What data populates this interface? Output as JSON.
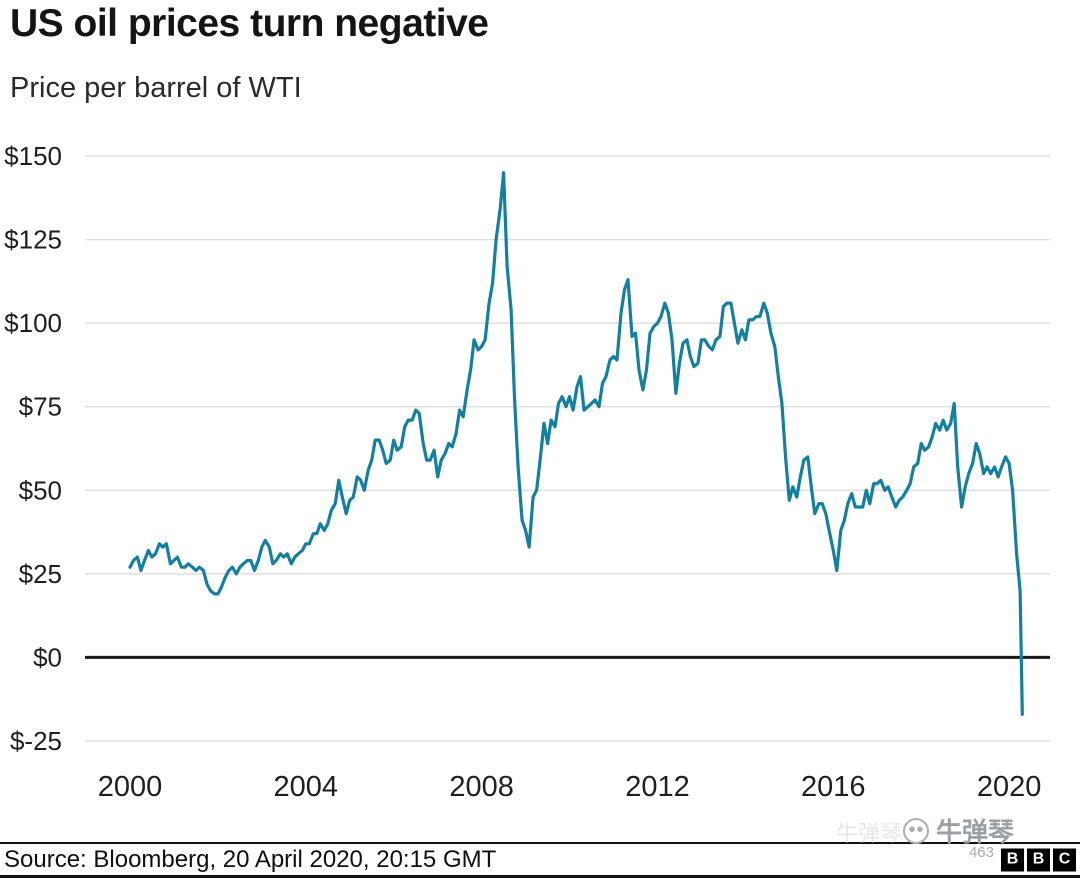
{
  "chart_data": {
    "type": "line",
    "title": "US oil prices turn negative",
    "subtitle": "Price per barrel of WTI",
    "series_name": "WTI crude oil price, US dollars per barrel",
    "line_color": "#1380A1",
    "grid": "horizontal",
    "legend": "none",
    "xlim": [
      1999.0,
      2020.93
    ],
    "ylim": [
      -25,
      150
    ],
    "zero_line_value": 0,
    "yticks": [
      {
        "value": 150,
        "label": "$150"
      },
      {
        "value": 125,
        "label": "$125"
      },
      {
        "value": 100,
        "label": "$100"
      },
      {
        "value": 75,
        "label": "$75"
      },
      {
        "value": 50,
        "label": "$50"
      },
      {
        "value": 25,
        "label": "$25"
      },
      {
        "value": 0,
        "label": "$0"
      },
      {
        "value": -25,
        "label": "$-25"
      }
    ],
    "xticks": [
      {
        "value": 2000,
        "label": "2000"
      },
      {
        "value": 2004,
        "label": "2004"
      },
      {
        "value": 2008,
        "label": "2008"
      },
      {
        "value": 2012,
        "label": "2012"
      },
      {
        "value": 2016,
        "label": "2016"
      },
      {
        "value": 2020,
        "label": "2020"
      }
    ],
    "points": [
      [
        2000.0,
        27
      ],
      [
        2000.08,
        29
      ],
      [
        2000.17,
        30
      ],
      [
        2000.25,
        26
      ],
      [
        2000.33,
        29
      ],
      [
        2000.42,
        32
      ],
      [
        2000.5,
        30
      ],
      [
        2000.58,
        31
      ],
      [
        2000.67,
        34
      ],
      [
        2000.75,
        33
      ],
      [
        2000.83,
        34
      ],
      [
        2000.92,
        28
      ],
      [
        2001.0,
        29
      ],
      [
        2001.08,
        30
      ],
      [
        2001.17,
        27
      ],
      [
        2001.25,
        27
      ],
      [
        2001.33,
        28
      ],
      [
        2001.42,
        27
      ],
      [
        2001.5,
        26
      ],
      [
        2001.58,
        27
      ],
      [
        2001.67,
        26
      ],
      [
        2001.75,
        22
      ],
      [
        2001.83,
        20
      ],
      [
        2001.92,
        19
      ],
      [
        2002.0,
        19
      ],
      [
        2002.08,
        21
      ],
      [
        2002.17,
        24
      ],
      [
        2002.25,
        26
      ],
      [
        2002.33,
        27
      ],
      [
        2002.42,
        25
      ],
      [
        2002.5,
        27
      ],
      [
        2002.58,
        28
      ],
      [
        2002.67,
        29
      ],
      [
        2002.75,
        29
      ],
      [
        2002.83,
        26
      ],
      [
        2002.92,
        29
      ],
      [
        2003.0,
        33
      ],
      [
        2003.08,
        35
      ],
      [
        2003.17,
        33
      ],
      [
        2003.25,
        28
      ],
      [
        2003.33,
        29
      ],
      [
        2003.42,
        31
      ],
      [
        2003.5,
        30
      ],
      [
        2003.58,
        31
      ],
      [
        2003.67,
        28
      ],
      [
        2003.75,
        30
      ],
      [
        2003.83,
        31
      ],
      [
        2003.92,
        32
      ],
      [
        2004.0,
        34
      ],
      [
        2004.08,
        34
      ],
      [
        2004.17,
        37
      ],
      [
        2004.25,
        37
      ],
      [
        2004.33,
        40
      ],
      [
        2004.42,
        38
      ],
      [
        2004.5,
        40
      ],
      [
        2004.58,
        44
      ],
      [
        2004.67,
        46
      ],
      [
        2004.75,
        53
      ],
      [
        2004.83,
        48
      ],
      [
        2004.92,
        43
      ],
      [
        2005.0,
        47
      ],
      [
        2005.08,
        48
      ],
      [
        2005.17,
        54
      ],
      [
        2005.25,
        53
      ],
      [
        2005.33,
        50
      ],
      [
        2005.42,
        56
      ],
      [
        2005.5,
        59
      ],
      [
        2005.58,
        65
      ],
      [
        2005.67,
        65
      ],
      [
        2005.75,
        62
      ],
      [
        2005.83,
        58
      ],
      [
        2005.92,
        59
      ],
      [
        2006.0,
        65
      ],
      [
        2006.08,
        62
      ],
      [
        2006.17,
        63
      ],
      [
        2006.25,
        69
      ],
      [
        2006.33,
        71
      ],
      [
        2006.42,
        71
      ],
      [
        2006.5,
        74
      ],
      [
        2006.58,
        73
      ],
      [
        2006.67,
        64
      ],
      [
        2006.75,
        59
      ],
      [
        2006.83,
        59
      ],
      [
        2006.92,
        62
      ],
      [
        2007.0,
        54
      ],
      [
        2007.08,
        59
      ],
      [
        2007.17,
        61
      ],
      [
        2007.25,
        64
      ],
      [
        2007.33,
        63
      ],
      [
        2007.42,
        67
      ],
      [
        2007.5,
        74
      ],
      [
        2007.58,
        72
      ],
      [
        2007.67,
        80
      ],
      [
        2007.75,
        86
      ],
      [
        2007.83,
        95
      ],
      [
        2007.92,
        92
      ],
      [
        2008.0,
        93
      ],
      [
        2008.08,
        95
      ],
      [
        2008.17,
        106
      ],
      [
        2008.25,
        112
      ],
      [
        2008.33,
        125
      ],
      [
        2008.42,
        134
      ],
      [
        2008.5,
        145
      ],
      [
        2008.58,
        117
      ],
      [
        2008.67,
        104
      ],
      [
        2008.75,
        77
      ],
      [
        2008.83,
        57
      ],
      [
        2008.92,
        41
      ],
      [
        2009.0,
        38
      ],
      [
        2009.08,
        33
      ],
      [
        2009.17,
        48
      ],
      [
        2009.25,
        50
      ],
      [
        2009.33,
        59
      ],
      [
        2009.42,
        70
      ],
      [
        2009.5,
        64
      ],
      [
        2009.58,
        71
      ],
      [
        2009.67,
        69
      ],
      [
        2009.75,
        76
      ],
      [
        2009.83,
        78
      ],
      [
        2009.92,
        75
      ],
      [
        2010.0,
        78
      ],
      [
        2010.08,
        74
      ],
      [
        2010.17,
        81
      ],
      [
        2010.25,
        84
      ],
      [
        2010.33,
        74
      ],
      [
        2010.42,
        75
      ],
      [
        2010.5,
        76
      ],
      [
        2010.58,
        77
      ],
      [
        2010.67,
        75
      ],
      [
        2010.75,
        82
      ],
      [
        2010.83,
        84
      ],
      [
        2010.92,
        89
      ],
      [
        2011.0,
        90
      ],
      [
        2011.08,
        89
      ],
      [
        2011.17,
        103
      ],
      [
        2011.25,
        110
      ],
      [
        2011.33,
        113
      ],
      [
        2011.42,
        96
      ],
      [
        2011.5,
        97
      ],
      [
        2011.58,
        86
      ],
      [
        2011.67,
        80
      ],
      [
        2011.75,
        86
      ],
      [
        2011.83,
        97
      ],
      [
        2011.92,
        99
      ],
      [
        2012.0,
        100
      ],
      [
        2012.08,
        102
      ],
      [
        2012.17,
        106
      ],
      [
        2012.25,
        103
      ],
      [
        2012.33,
        95
      ],
      [
        2012.42,
        79
      ],
      [
        2012.5,
        88
      ],
      [
        2012.58,
        94
      ],
      [
        2012.67,
        95
      ],
      [
        2012.75,
        90
      ],
      [
        2012.83,
        87
      ],
      [
        2012.92,
        88
      ],
      [
        2013.0,
        95
      ],
      [
        2013.08,
        95
      ],
      [
        2013.17,
        93
      ],
      [
        2013.25,
        92
      ],
      [
        2013.33,
        95
      ],
      [
        2013.42,
        96
      ],
      [
        2013.5,
        105
      ],
      [
        2013.58,
        106
      ],
      [
        2013.67,
        106
      ],
      [
        2013.75,
        100
      ],
      [
        2013.83,
        94
      ],
      [
        2013.92,
        98
      ],
      [
        2014.0,
        95
      ],
      [
        2014.08,
        101
      ],
      [
        2014.17,
        101
      ],
      [
        2014.25,
        102
      ],
      [
        2014.33,
        102
      ],
      [
        2014.42,
        106
      ],
      [
        2014.5,
        103
      ],
      [
        2014.58,
        97
      ],
      [
        2014.67,
        93
      ],
      [
        2014.75,
        84
      ],
      [
        2014.83,
        76
      ],
      [
        2014.92,
        59
      ],
      [
        2015.0,
        47
      ],
      [
        2015.08,
        51
      ],
      [
        2015.17,
        48
      ],
      [
        2015.25,
        54
      ],
      [
        2015.33,
        59
      ],
      [
        2015.42,
        60
      ],
      [
        2015.5,
        51
      ],
      [
        2015.58,
        43
      ],
      [
        2015.67,
        46
      ],
      [
        2015.75,
        46
      ],
      [
        2015.83,
        43
      ],
      [
        2015.92,
        37
      ],
      [
        2016.0,
        32
      ],
      [
        2016.08,
        26
      ],
      [
        2016.17,
        38
      ],
      [
        2016.25,
        41
      ],
      [
        2016.33,
        46
      ],
      [
        2016.42,
        49
      ],
      [
        2016.5,
        45
      ],
      [
        2016.58,
        45
      ],
      [
        2016.67,
        45
      ],
      [
        2016.75,
        50
      ],
      [
        2016.83,
        46
      ],
      [
        2016.92,
        52
      ],
      [
        2017.0,
        52
      ],
      [
        2017.08,
        53
      ],
      [
        2017.17,
        50
      ],
      [
        2017.25,
        51
      ],
      [
        2017.33,
        48
      ],
      [
        2017.42,
        45
      ],
      [
        2017.5,
        47
      ],
      [
        2017.58,
        48
      ],
      [
        2017.67,
        50
      ],
      [
        2017.75,
        52
      ],
      [
        2017.83,
        57
      ],
      [
        2017.92,
        58
      ],
      [
        2018.0,
        64
      ],
      [
        2018.08,
        62
      ],
      [
        2018.17,
        63
      ],
      [
        2018.25,
        66
      ],
      [
        2018.33,
        70
      ],
      [
        2018.42,
        68
      ],
      [
        2018.5,
        71
      ],
      [
        2018.58,
        68
      ],
      [
        2018.67,
        70
      ],
      [
        2018.75,
        76
      ],
      [
        2018.83,
        57
      ],
      [
        2018.92,
        45
      ],
      [
        2019.0,
        51
      ],
      [
        2019.08,
        55
      ],
      [
        2019.17,
        58
      ],
      [
        2019.25,
        64
      ],
      [
        2019.33,
        61
      ],
      [
        2019.42,
        55
      ],
      [
        2019.5,
        57
      ],
      [
        2019.58,
        55
      ],
      [
        2019.67,
        57
      ],
      [
        2019.75,
        54
      ],
      [
        2019.83,
        57
      ],
      [
        2019.92,
        60
      ],
      [
        2020.0,
        58
      ],
      [
        2020.08,
        50
      ],
      [
        2020.17,
        31
      ],
      [
        2020.25,
        20
      ],
      [
        2020.3,
        -17
      ]
    ]
  },
  "footer": {
    "source": "Source: Bloomberg, 20 April 2020, 20:15 GMT",
    "bbc_letters": [
      "B",
      "B",
      "C"
    ]
  },
  "watermark": {
    "name": "牛弹琴",
    "number": "463"
  }
}
